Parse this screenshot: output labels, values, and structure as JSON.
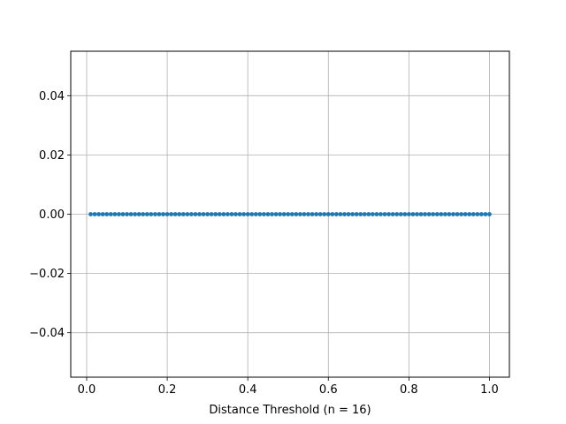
{
  "chart_data": {
    "type": "line",
    "title": "",
    "xlabel": "Distance Threshold (n = 16)",
    "ylabel": "",
    "xlim": [
      -0.0395,
      1.0495
    ],
    "ylim": [
      -0.055,
      0.055
    ],
    "grid": true,
    "marker": "point",
    "x_ticks": [
      0.0,
      0.2,
      0.4,
      0.6,
      0.8,
      1.0
    ],
    "x_tick_labels": [
      "0.0",
      "0.2",
      "0.4",
      "0.6",
      "0.8",
      "1.0"
    ],
    "y_ticks": [
      -0.04,
      -0.02,
      0.0,
      0.02,
      0.04
    ],
    "y_tick_labels": [
      "−0.04",
      "−0.02",
      "0.00",
      "0.02",
      "0.04"
    ],
    "series": [
      {
        "color": "#1f77b4",
        "x": [
          0.01,
          0.02,
          0.03,
          0.04,
          0.05,
          0.06,
          0.07,
          0.08,
          0.09,
          0.1,
          0.11,
          0.12,
          0.13,
          0.14,
          0.15,
          0.16,
          0.17,
          0.18,
          0.19,
          0.2,
          0.21,
          0.22,
          0.23,
          0.24,
          0.25,
          0.26,
          0.27,
          0.28,
          0.29,
          0.3,
          0.31,
          0.32,
          0.33,
          0.34,
          0.35,
          0.36,
          0.37,
          0.38,
          0.39,
          0.4,
          0.41,
          0.42,
          0.43,
          0.44,
          0.45,
          0.46,
          0.47,
          0.48,
          0.49,
          0.5,
          0.51,
          0.52,
          0.53,
          0.54,
          0.55,
          0.56,
          0.57,
          0.58,
          0.59,
          0.6,
          0.61,
          0.62,
          0.63,
          0.64,
          0.65,
          0.66,
          0.67,
          0.68,
          0.69,
          0.7,
          0.71,
          0.72,
          0.73,
          0.74,
          0.75,
          0.76,
          0.77,
          0.78,
          0.79,
          0.8,
          0.81,
          0.82,
          0.83,
          0.84,
          0.85,
          0.86,
          0.87,
          0.88,
          0.89,
          0.9,
          0.91,
          0.92,
          0.93,
          0.94,
          0.95,
          0.96,
          0.97,
          0.98,
          0.99,
          1.0
        ],
        "y": [
          0,
          0,
          0,
          0,
          0,
          0,
          0,
          0,
          0,
          0,
          0,
          0,
          0,
          0,
          0,
          0,
          0,
          0,
          0,
          0,
          0,
          0,
          0,
          0,
          0,
          0,
          0,
          0,
          0,
          0,
          0,
          0,
          0,
          0,
          0,
          0,
          0,
          0,
          0,
          0,
          0,
          0,
          0,
          0,
          0,
          0,
          0,
          0,
          0,
          0,
          0,
          0,
          0,
          0,
          0,
          0,
          0,
          0,
          0,
          0,
          0,
          0,
          0,
          0,
          0,
          0,
          0,
          0,
          0,
          0,
          0,
          0,
          0,
          0,
          0,
          0,
          0,
          0,
          0,
          0,
          0,
          0,
          0,
          0,
          0,
          0,
          0,
          0,
          0,
          0,
          0,
          0,
          0,
          0,
          0,
          0,
          0,
          0,
          0,
          0
        ]
      }
    ]
  }
}
